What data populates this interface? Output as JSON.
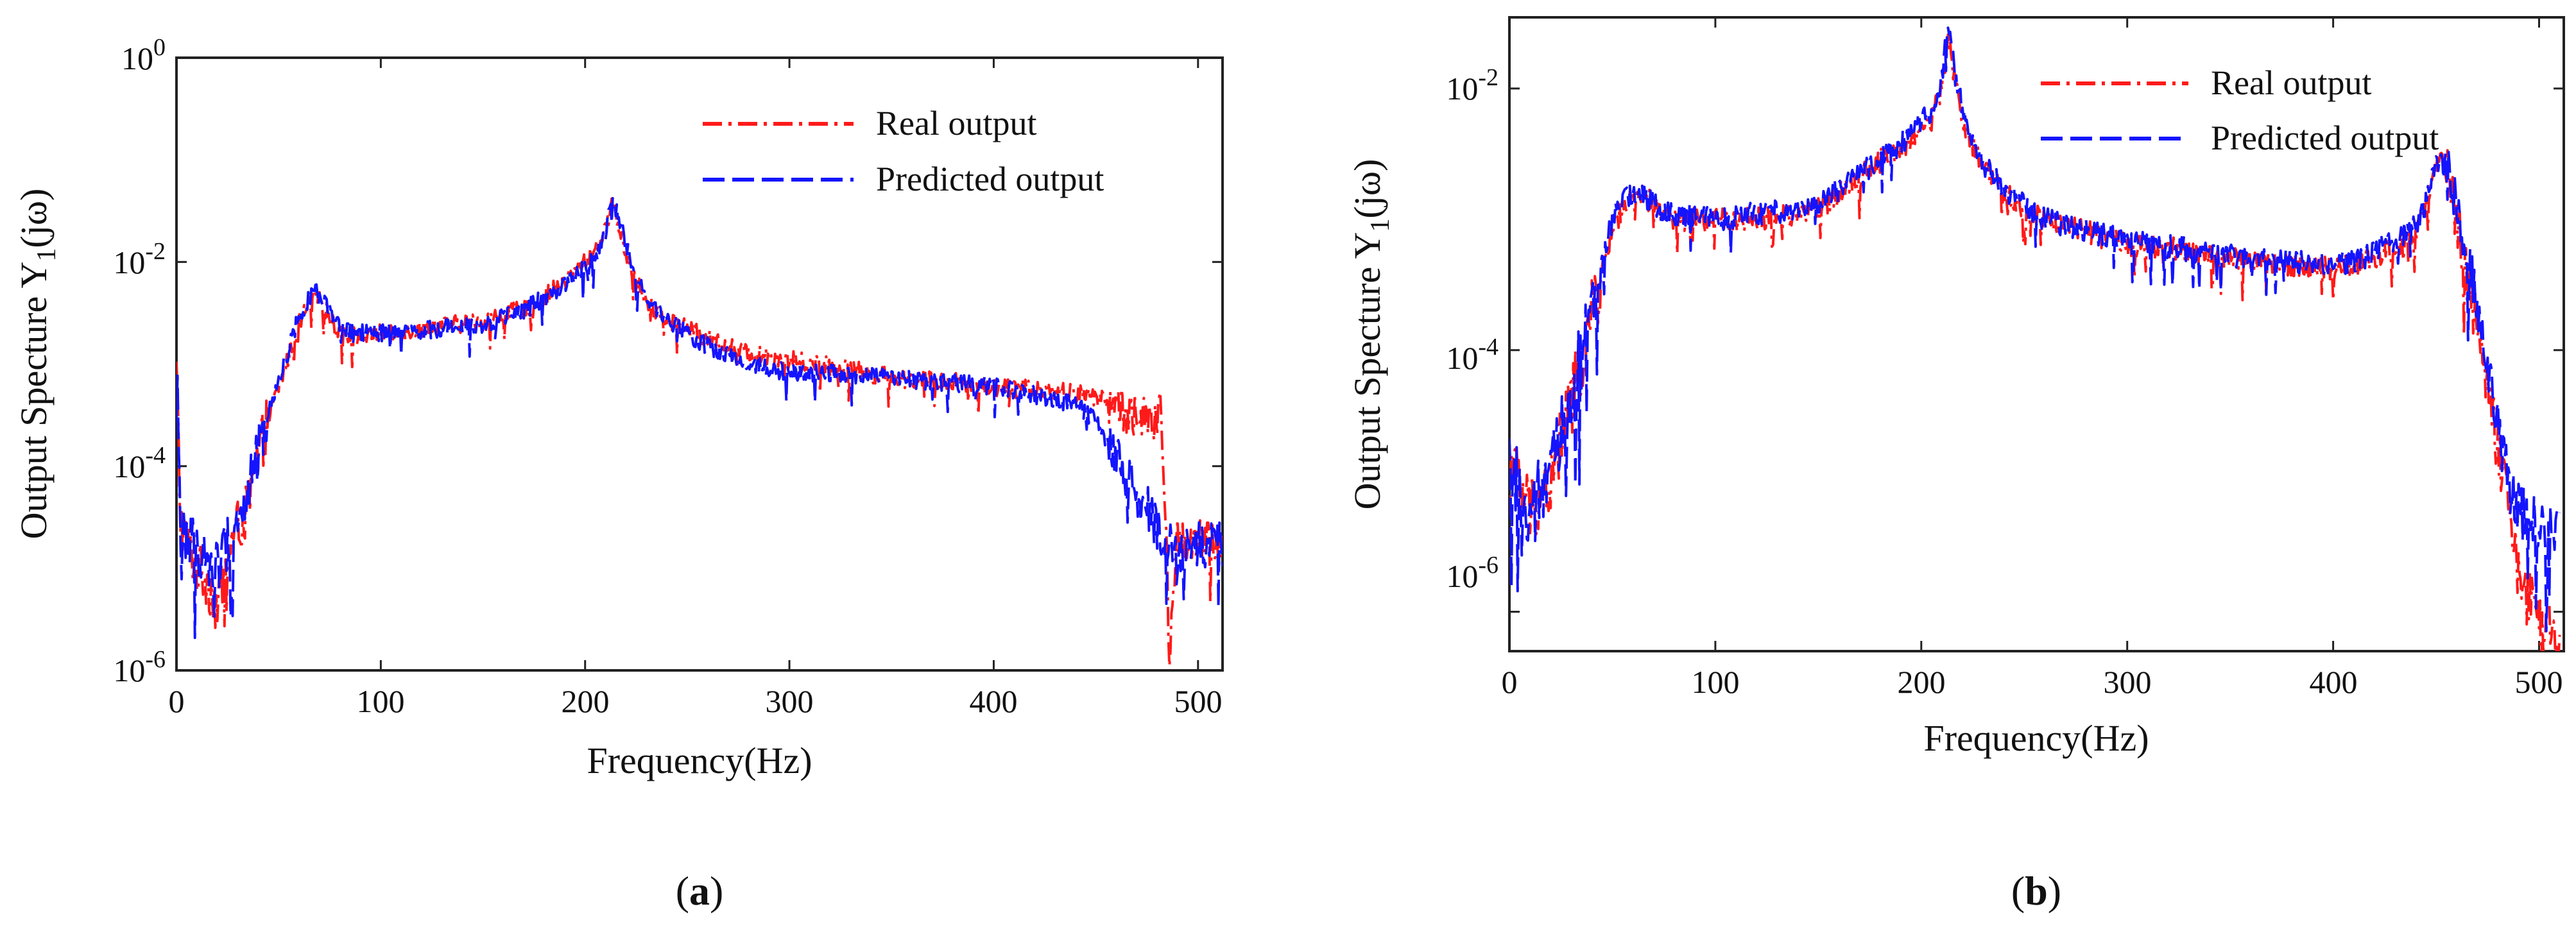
{
  "colors": {
    "real": "#ff1a1a",
    "predicted": "#1414ff",
    "axis": "#222222"
  },
  "chart_data": [
    {
      "panel": "a",
      "type": "line",
      "panel_label": {
        "open": "(",
        "letter": "a",
        "close": ")"
      },
      "xlabel": "Frequency(Hz)",
      "ylabel": {
        "prefix": "Output Specture Y",
        "subscript": "1",
        "suffix": "(jω)"
      },
      "xlim": [
        0,
        512
      ],
      "ylim": [
        1e-06,
        1
      ],
      "yscale": "log",
      "x_ticks": [
        0,
        100,
        200,
        300,
        400,
        500
      ],
      "x_tick_labels": [
        "0",
        "100",
        "200",
        "300",
        "400",
        "500"
      ],
      "y_ticks": [
        1e-06,
        0.0001,
        0.01,
        1
      ],
      "y_tick_labels": [
        {
          "base": "10",
          "exp": "-6"
        },
        {
          "base": "10",
          "exp": "-4"
        },
        {
          "base": "10",
          "exp": "-2"
        },
        {
          "base": "10",
          "exp": "0"
        }
      ],
      "legend": {
        "position": "top-right",
        "entries": [
          "Real output",
          "Predicted output"
        ]
      },
      "series": [
        {
          "name": "Real output",
          "style": "dash-dot",
          "color": "#ff1a1a",
          "x": [
            0,
            2,
            5,
            10,
            15,
            20,
            25,
            30,
            35,
            40,
            45,
            50,
            55,
            60,
            65,
            68,
            72,
            78,
            85,
            100,
            120,
            140,
            150,
            160,
            170,
            180,
            190,
            200,
            205,
            210,
            213,
            216,
            220,
            225,
            230,
            240,
            250,
            260,
            270,
            280,
            290,
            300,
            320,
            340,
            360,
            380,
            400,
            420,
            440,
            450,
            460,
            470,
            478,
            482,
            484,
            486,
            490,
            500,
            512
          ],
          "y": [
            0.0008,
            3e-05,
            1.8e-05,
            1e-05,
            8e-06,
            4e-06,
            1.5e-05,
            2.5e-05,
            4e-05,
            0.00012,
            0.0003,
            0.0006,
            0.0012,
            0.0025,
            0.004,
            0.0045,
            0.0038,
            0.0022,
            0.0019,
            0.002,
            0.0022,
            0.0025,
            0.0026,
            0.003,
            0.0035,
            0.0045,
            0.0065,
            0.01,
            0.013,
            0.02,
            0.04,
            0.025,
            0.012,
            0.0065,
            0.004,
            0.0028,
            0.0022,
            0.0018,
            0.0015,
            0.0013,
            0.0012,
            0.0011,
            0.001,
            0.0008,
            0.0007,
            0.00068,
            0.0006,
            0.00058,
            0.00052,
            0.00048,
            0.00038,
            0.00032,
            0.00025,
            0.00035,
            3e-05,
            1.5e-06,
            2e-05,
            1.8e-05,
            1.7e-05
          ]
        },
        {
          "name": "Predicted output",
          "style": "dashed",
          "color": "#1414ff",
          "x": [
            0,
            2,
            5,
            10,
            15,
            20,
            25,
            30,
            35,
            40,
            45,
            50,
            55,
            60,
            65,
            68,
            72,
            78,
            85,
            100,
            120,
            140,
            150,
            160,
            170,
            180,
            190,
            200,
            205,
            210,
            213,
            216,
            220,
            225,
            230,
            240,
            250,
            260,
            270,
            280,
            290,
            300,
            320,
            340,
            360,
            380,
            400,
            420,
            440,
            450,
            455,
            460,
            465,
            470,
            475,
            480,
            485,
            490,
            495,
            500,
            512
          ],
          "y": [
            0.001,
            3e-05,
            2e-05,
            1.5e-05,
            1.2e-05,
            1e-05,
            1.8e-05,
            3e-05,
            5e-05,
            0.00014,
            0.00035,
            0.0007,
            0.0014,
            0.003,
            0.0045,
            0.005,
            0.0042,
            0.0024,
            0.002,
            0.002,
            0.0021,
            0.0024,
            0.0025,
            0.0028,
            0.0034,
            0.0044,
            0.006,
            0.009,
            0.012,
            0.018,
            0.045,
            0.03,
            0.014,
            0.007,
            0.0042,
            0.0028,
            0.002,
            0.0015,
            0.0012,
            0.001,
            0.0009,
            0.00085,
            0.0008,
            0.00075,
            0.0007,
            0.00065,
            0.0006,
            0.0005,
            0.0004,
            0.00028,
            0.00018,
            0.00012,
            8e-05,
            5e-05,
            4e-05,
            2.5e-05,
            1.8e-05,
            1.5e-05,
            1.6e-05,
            1.7e-05,
            1.7e-05
          ]
        }
      ]
    },
    {
      "panel": "b",
      "type": "line",
      "panel_label": {
        "open": "(",
        "letter": "b",
        "close": ")"
      },
      "xlabel": "Frequency(Hz)",
      "ylabel": {
        "prefix": "Output Specture Y",
        "subscript": "1",
        "suffix": "(jω)"
      },
      "xlim": [
        0,
        512
      ],
      "ylim": [
        5e-07,
        0.035
      ],
      "yscale": "log",
      "x_ticks": [
        0,
        100,
        200,
        300,
        400,
        500
      ],
      "x_tick_labels": [
        "0",
        "100",
        "200",
        "300",
        "400",
        "500"
      ],
      "y_ticks": [
        1e-06,
        0.0001,
        0.01
      ],
      "y_tick_labels": [
        {
          "base": "10",
          "exp": "-6"
        },
        {
          "base": "10",
          "exp": "-4"
        },
        {
          "base": "10",
          "exp": "-2"
        }
      ],
      "legend": {
        "position": "top-right",
        "entries": [
          "Real output",
          "Predicted output"
        ]
      },
      "series": [
        {
          "name": "Real output",
          "style": "dash-dot",
          "color": "#ff1a1a",
          "x": [
            0,
            3,
            6,
            10,
            15,
            20,
            25,
            30,
            35,
            40,
            45,
            50,
            55,
            60,
            65,
            70,
            75,
            80,
            100,
            120,
            140,
            150,
            160,
            170,
            180,
            190,
            200,
            205,
            210,
            213,
            216,
            220,
            225,
            230,
            240,
            250,
            260,
            280,
            300,
            320,
            340,
            360,
            380,
            400,
            410,
            420,
            430,
            440,
            445,
            450,
            453,
            456,
            460,
            465,
            470,
            475,
            480,
            485,
            490,
            495,
            500,
            505,
            510
          ],
          "y": [
            2e-05,
            1.2e-05,
            8e-06,
            6e-06,
            8e-06,
            9e-06,
            2e-05,
            4e-05,
            8e-05,
            0.00018,
            0.0004,
            0.00085,
            0.0012,
            0.0014,
            0.0015,
            0.0013,
            0.0011,
            0.001,
            0.00098,
            0.001,
            0.0011,
            0.0012,
            0.0016,
            0.0021,
            0.0028,
            0.0035,
            0.0048,
            0.0058,
            0.01,
            0.025,
            0.012,
            0.006,
            0.0035,
            0.0025,
            0.0016,
            0.0012,
            0.001,
            0.0008,
            0.00065,
            0.0006,
            0.00052,
            0.00048,
            0.00045,
            0.00042,
            0.00045,
            0.0005,
            0.0006,
            0.0008,
            0.0012,
            0.0025,
            0.003,
            0.002,
            0.001,
            0.0004,
            0.00015,
            5e-05,
            1.8e-05,
            6e-06,
            2e-06,
            1.2e-06,
            9e-07,
            7e-07,
            6e-07
          ]
        },
        {
          "name": "Predicted output",
          "style": "dashed",
          "color": "#1414ff",
          "x": [
            0,
            3,
            6,
            10,
            15,
            20,
            25,
            30,
            35,
            40,
            45,
            50,
            55,
            60,
            65,
            70,
            75,
            80,
            100,
            120,
            140,
            150,
            160,
            170,
            180,
            190,
            200,
            205,
            210,
            213,
            216,
            220,
            225,
            230,
            240,
            250,
            260,
            280,
            300,
            320,
            340,
            360,
            380,
            400,
            410,
            420,
            430,
            440,
            445,
            450,
            453,
            456,
            460,
            465,
            470,
            475,
            480,
            485,
            490,
            495,
            500,
            505,
            510
          ],
          "y": [
            1.5e-05,
            1e-05,
            8e-06,
            4e-06,
            9e-06,
            1.1e-05,
            2.2e-05,
            4.5e-05,
            9e-05,
            0.0002,
            0.00045,
            0.001,
            0.0014,
            0.0016,
            0.0015,
            0.0013,
            0.0011,
            0.0011,
            0.001,
            0.0011,
            0.0012,
            0.0013,
            0.0017,
            0.0022,
            0.0029,
            0.0038,
            0.0055,
            0.007,
            0.012,
            0.033,
            0.014,
            0.007,
            0.004,
            0.0027,
            0.0017,
            0.0013,
            0.001,
            0.00082,
            0.00068,
            0.00062,
            0.00055,
            0.0005,
            0.00048,
            0.00045,
            0.00048,
            0.00055,
            0.0007,
            0.0009,
            0.0013,
            0.0026,
            0.0032,
            0.0022,
            0.0012,
            0.0005,
            0.0002,
            8e-05,
            3e-05,
            1e-05,
            6e-06,
            5e-06,
            4.5e-06,
            4e-06,
            4.2e-06
          ]
        }
      ]
    }
  ]
}
